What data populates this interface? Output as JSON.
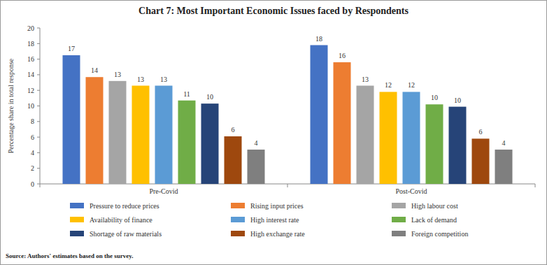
{
  "chart_data": {
    "type": "bar",
    "title": "Chart 7: Most Important Economic Issues faced by Respondents",
    "y_label": "Percentage share in total response",
    "source": "Source: Authors' estimates based on the survey.",
    "categories": [
      "Pre-Covid",
      "Post-Covid"
    ],
    "series": [
      {
        "name": "Pressure to reduce prices",
        "color": "#4472c4",
        "values": [
          16.5,
          17.8
        ],
        "value_labels": [
          "17",
          "18"
        ]
      },
      {
        "name": "Rising input prices",
        "color": "#ed7d31",
        "values": [
          13.7,
          15.6
        ],
        "value_labels": [
          "14",
          "16"
        ]
      },
      {
        "name": "High labour cost",
        "color": "#a5a5a5",
        "values": [
          13.2,
          12.6
        ],
        "value_labels": [
          "13",
          "13"
        ]
      },
      {
        "name": "Availability of finance",
        "color": "#ffc000",
        "values": [
          12.6,
          11.8
        ],
        "value_labels": [
          "13",
          "12"
        ]
      },
      {
        "name": "High interest rate",
        "color": "#5b9bd5",
        "values": [
          12.6,
          11.8
        ],
        "value_labels": [
          "13",
          "12"
        ]
      },
      {
        "name": "Lack of demand",
        "color": "#70ad47",
        "values": [
          10.7,
          10.2
        ],
        "value_labels": [
          "11",
          "10"
        ]
      },
      {
        "name": "Shortage of raw materials",
        "color": "#264478",
        "values": [
          10.3,
          9.9
        ],
        "value_labels": [
          "10",
          "10"
        ]
      },
      {
        "name": "High exchange rate",
        "color": "#9e480e",
        "values": [
          6.1,
          5.8
        ],
        "value_labels": [
          "6",
          "6"
        ]
      },
      {
        "name": "Foreign competition",
        "color": "#7f7f7f",
        "values": [
          4.4,
          4.4
        ],
        "value_labels": [
          "4",
          "4"
        ]
      }
    ],
    "ylim": [
      0,
      20
    ],
    "yticks": [
      0,
      2,
      4,
      6,
      8,
      10,
      12,
      14,
      16,
      18,
      20
    ],
    "grid": false,
    "legend": "bottom",
    "data_labels": true
  }
}
